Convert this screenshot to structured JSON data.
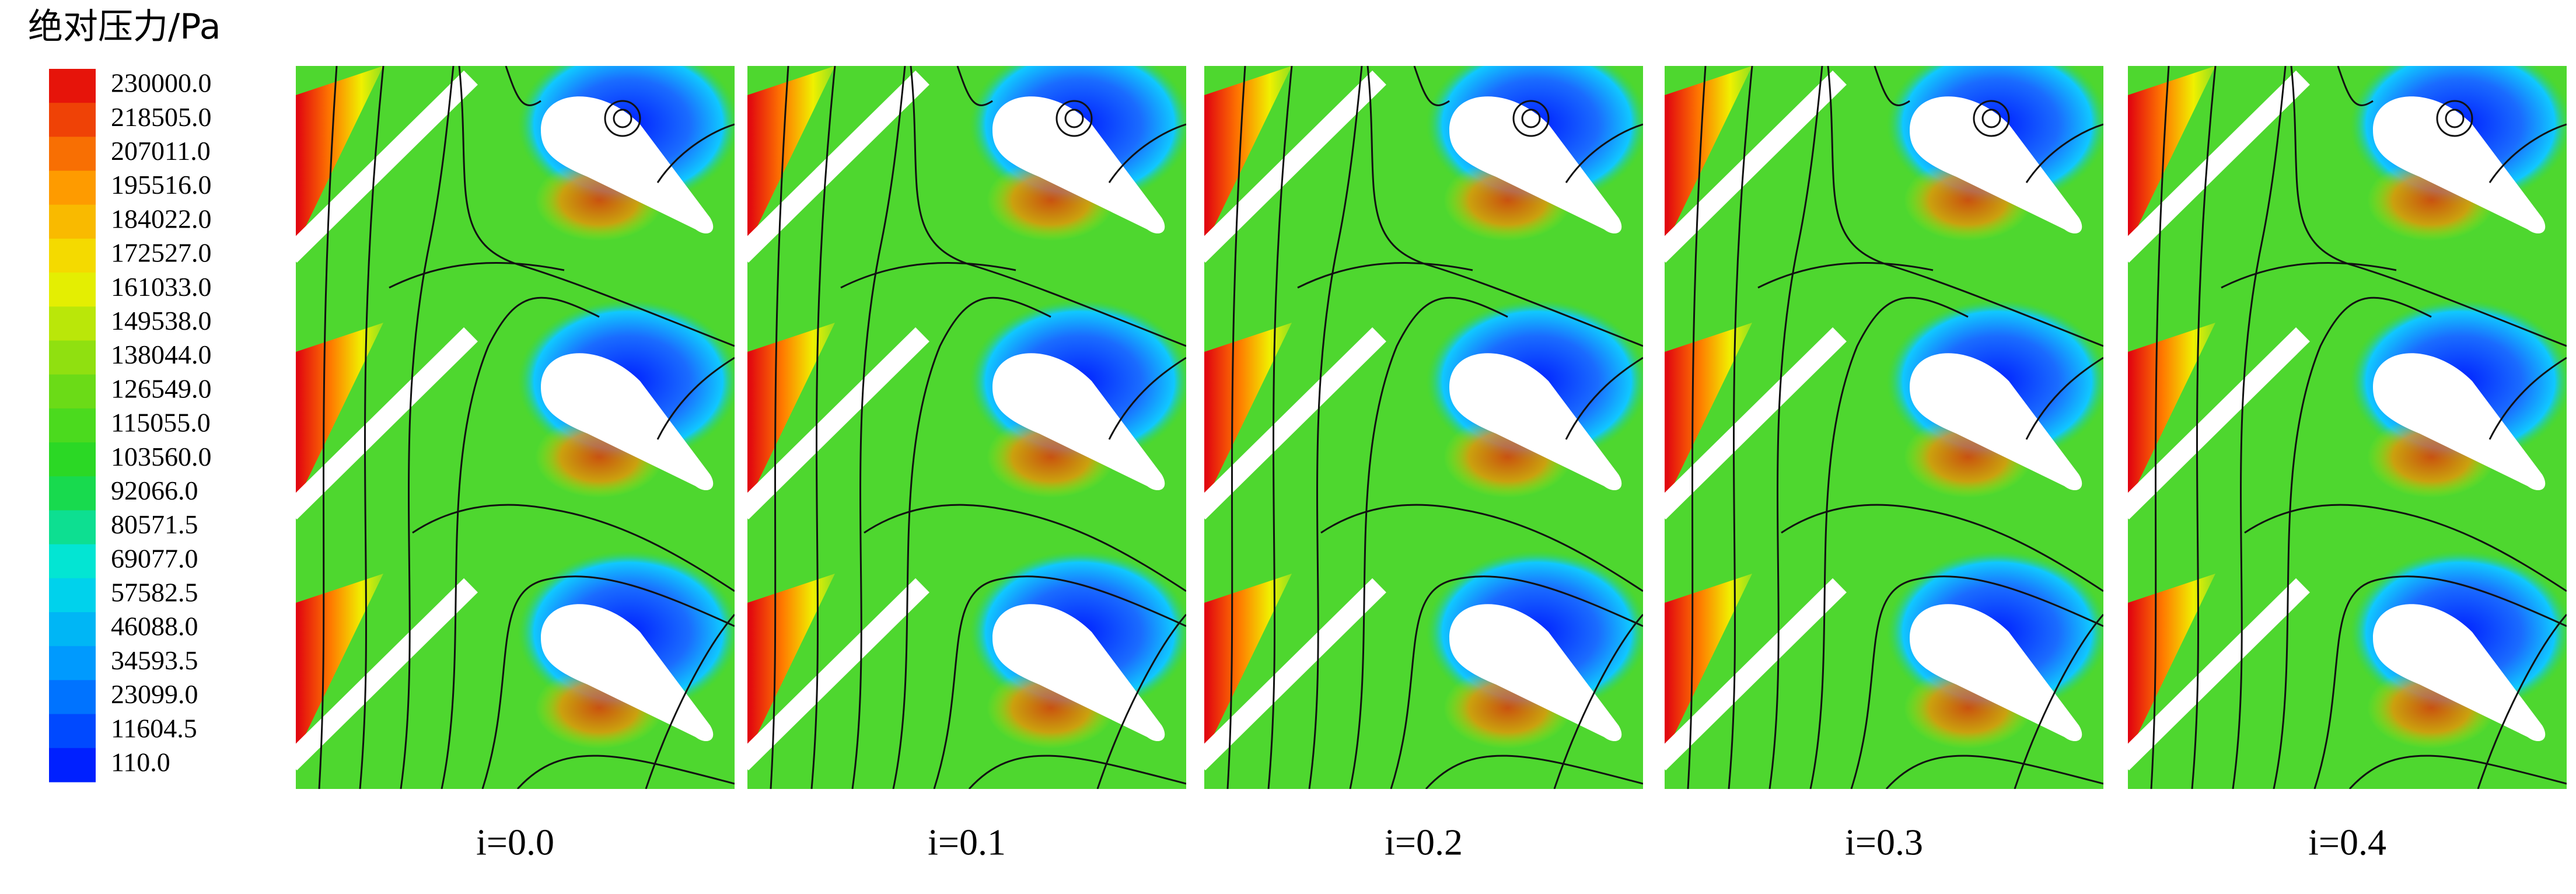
{
  "legend": {
    "title": "绝对压力/Pa",
    "labels": [
      "230000.0",
      "218505.0",
      "207011.0",
      "195516.0",
      "184022.0",
      "172527.0",
      "161033.0",
      "149538.0",
      "138044.0",
      "126549.0",
      "115055.0",
      "103560.0",
      "92066.0",
      "80571.5",
      "69077.0",
      "57582.5",
      "46088.0",
      "34593.5",
      "23099.0",
      "11604.5",
      "110.0"
    ]
  },
  "panels": [
    {
      "label": "i=0.0"
    },
    {
      "label": "i=0.1"
    },
    {
      "label": "i=0.2"
    },
    {
      "label": "i=0.3"
    },
    {
      "label": "i=0.4"
    }
  ]
}
